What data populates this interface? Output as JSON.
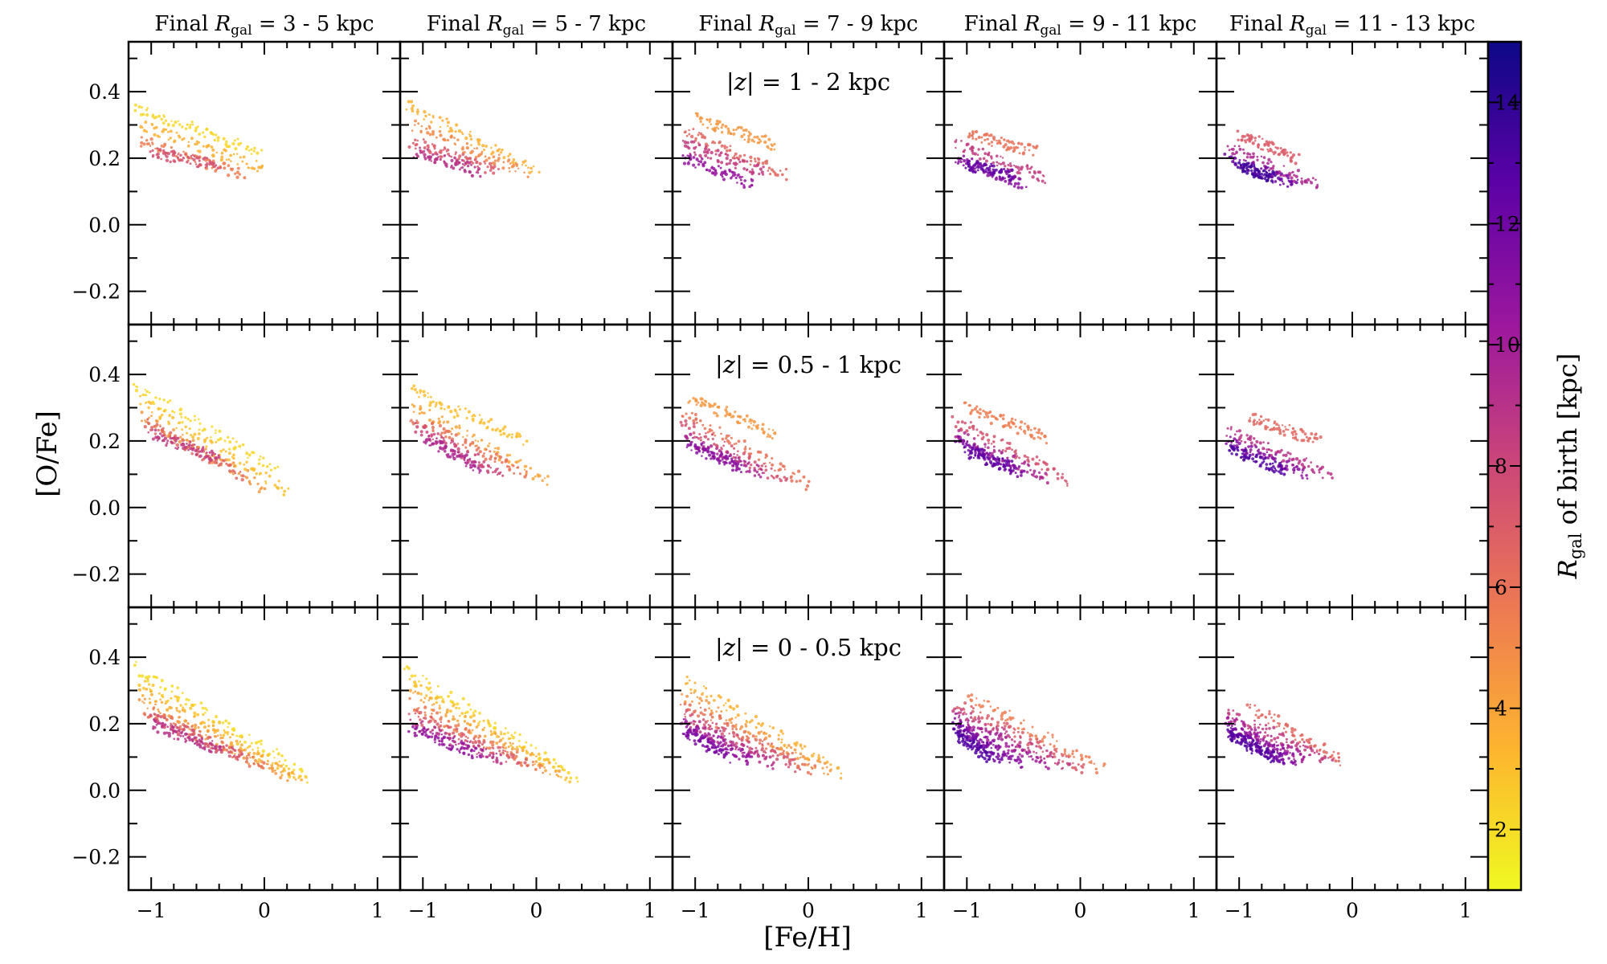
{
  "chart_data": {
    "type": "scatter",
    "column_titles": [
      {
        "prefix": "Final ",
        "var": "R",
        "sub": "gal",
        "suffix": " = 3 - 5 kpc"
      },
      {
        "prefix": "Final ",
        "var": "R",
        "sub": "gal",
        "suffix": " = 5 - 7 kpc"
      },
      {
        "prefix": "Final ",
        "var": "R",
        "sub": "gal",
        "suffix": " = 7 - 9 kpc"
      },
      {
        "prefix": "Final ",
        "var": "R",
        "sub": "gal",
        "suffix": " = 9 - 11 kpc"
      },
      {
        "prefix": "Final ",
        "var": "R",
        "sub": "gal",
        "suffix": " = 11 - 13 kpc"
      }
    ],
    "row_labels": [
      {
        "pre": "|",
        "var": "z",
        "post": "| = 1 - 2 kpc"
      },
      {
        "pre": "|",
        "var": "z",
        "post": "| = 0.5 - 1 kpc"
      },
      {
        "pre": "|",
        "var": "z",
        "post": "| = 0 - 0.5 kpc"
      }
    ],
    "xlabel": "[Fe/H]",
    "ylabel": "[O/Fe]",
    "xlim": [
      -1.2,
      1.2
    ],
    "ylim": [
      -0.3,
      0.55
    ],
    "xticks": [
      -1,
      0,
      1
    ],
    "xtick_labels": [
      "−1",
      "0",
      "1"
    ],
    "yticks": [
      -0.2,
      0.0,
      0.2,
      0.4
    ],
    "ytick_labels": [
      "−0.2",
      "0.0",
      "0.2",
      "0.4"
    ],
    "colorbar": {
      "label_var": "R",
      "label_sub": "gal",
      "label_rest": " of birth [kpc]",
      "range": [
        1,
        15
      ],
      "ticks": [
        2,
        4,
        6,
        8,
        10,
        12,
        14
      ],
      "tick_labels": [
        "2",
        "4",
        "6",
        "8",
        "10",
        "12",
        "14"
      ],
      "colormap": "plasma_r",
      "colors": [
        "#f0f921",
        "#fdb42f",
        "#ed7953",
        "#cc4778",
        "#9c179e",
        "#5c01a6",
        "#0d0887"
      ]
    },
    "panels": [
      [
        {
          "tracks": [
            [
              -1.15,
              0.35,
              -0.05,
              0.22,
              2.2
            ],
            [
              -1.1,
              0.3,
              0.0,
              0.17,
              3.5
            ],
            [
              -1.1,
              0.25,
              -0.2,
              0.15,
              5.5
            ],
            [
              -1.0,
              0.22,
              -0.4,
              0.18,
              7.5
            ]
          ]
        },
        {
          "tracks": [
            [
              -1.15,
              0.36,
              0.0,
              0.16,
              3.5
            ],
            [
              -1.1,
              0.3,
              -0.1,
              0.16,
              5.0
            ],
            [
              -1.1,
              0.25,
              -0.35,
              0.16,
              7.0
            ],
            [
              -1.05,
              0.22,
              -0.5,
              0.16,
              9.0
            ]
          ]
        },
        {
          "tracks": [
            [
              -1.0,
              0.32,
              -0.3,
              0.24,
              4.5
            ],
            [
              -1.1,
              0.28,
              -0.2,
              0.15,
              6.5
            ],
            [
              -1.1,
              0.24,
              -0.4,
              0.16,
              8.5
            ],
            [
              -1.1,
              0.2,
              -0.5,
              0.12,
              10.5
            ]
          ]
        },
        {
          "tracks": [
            [
              -1.0,
              0.27,
              -0.4,
              0.22,
              6.0
            ],
            [
              -1.1,
              0.24,
              -0.3,
              0.14,
              8.5
            ],
            [
              -1.1,
              0.2,
              -0.5,
              0.12,
              11.0
            ],
            [
              -1.0,
              0.18,
              -0.6,
              0.15,
              12.5
            ]
          ]
        },
        {
          "tracks": [
            [
              -1.0,
              0.27,
              -0.5,
              0.2,
              7.0
            ],
            [
              -1.1,
              0.23,
              -0.3,
              0.12,
              9.5
            ],
            [
              -1.1,
              0.2,
              -0.5,
              0.12,
              12.0
            ],
            [
              -1.0,
              0.18,
              -0.7,
              0.14,
              13.5
            ]
          ]
        }
      ],
      [
        {
          "tracks": [
            [
              -1.15,
              0.36,
              0.1,
              0.12,
              2.2
            ],
            [
              -1.1,
              0.32,
              0.2,
              0.05,
              3.0
            ],
            [
              -1.1,
              0.28,
              0.0,
              0.06,
              4.5
            ],
            [
              -1.05,
              0.25,
              -0.2,
              0.1,
              6.5
            ],
            [
              -1.0,
              0.22,
              -0.4,
              0.15,
              8.5
            ]
          ]
        },
        {
          "tracks": [
            [
              -1.1,
              0.35,
              -0.1,
              0.2,
              3.0
            ],
            [
              -1.1,
              0.31,
              0.1,
              0.08,
              4.0
            ],
            [
              -1.1,
              0.27,
              -0.1,
              0.1,
              6.0
            ],
            [
              -1.05,
              0.24,
              -0.3,
              0.1,
              8.0
            ],
            [
              -1.0,
              0.21,
              -0.5,
              0.12,
              9.5
            ]
          ]
        },
        {
          "tracks": [
            [
              -1.05,
              0.33,
              -0.3,
              0.22,
              4.5
            ],
            [
              -1.1,
              0.29,
              0.0,
              0.07,
              6.0
            ],
            [
              -1.1,
              0.25,
              -0.2,
              0.08,
              7.5
            ],
            [
              -1.1,
              0.21,
              -0.4,
              0.1,
              9.5
            ],
            [
              -1.05,
              0.19,
              -0.6,
              0.12,
              11.0
            ]
          ]
        },
        {
          "tracks": [
            [
              -1.0,
              0.3,
              -0.3,
              0.21,
              5.5
            ],
            [
              -1.1,
              0.26,
              -0.1,
              0.08,
              7.5
            ],
            [
              -1.1,
              0.22,
              -0.3,
              0.09,
              9.5
            ],
            [
              -1.1,
              0.2,
              -0.5,
              0.1,
              11.5
            ],
            [
              -1.0,
              0.17,
              -0.6,
              0.12,
              12.5
            ]
          ]
        },
        {
          "tracks": [
            [
              -0.9,
              0.27,
              -0.3,
              0.2,
              6.5
            ],
            [
              -1.1,
              0.23,
              -0.2,
              0.1,
              9.0
            ],
            [
              -1.1,
              0.2,
              -0.4,
              0.1,
              11.0
            ],
            [
              -1.1,
              0.18,
              -0.6,
              0.11,
              13.0
            ]
          ]
        }
      ],
      [
        {
          "tracks": [
            [
              -1.15,
              0.37,
              0.4,
              0.04,
              2.0
            ],
            [
              -1.1,
              0.33,
              0.35,
              0.03,
              2.8
            ],
            [
              -1.1,
              0.3,
              0.3,
              0.03,
              3.6
            ],
            [
              -1.1,
              0.27,
              0.2,
              0.04,
              4.5
            ],
            [
              -1.05,
              0.24,
              0.0,
              0.07,
              6.0
            ],
            [
              -1.0,
              0.22,
              -0.2,
              0.1,
              7.5
            ],
            [
              -1.0,
              0.2,
              -0.4,
              0.12,
              9.0
            ]
          ]
        },
        {
          "tracks": [
            [
              -1.15,
              0.36,
              0.35,
              0.04,
              2.2
            ],
            [
              -1.1,
              0.32,
              0.3,
              0.04,
              3.0
            ],
            [
              -1.1,
              0.29,
              0.2,
              0.05,
              4.0
            ],
            [
              -1.1,
              0.26,
              0.05,
              0.06,
              5.5
            ],
            [
              -1.1,
              0.23,
              -0.1,
              0.08,
              7.0
            ],
            [
              -1.1,
              0.2,
              -0.3,
              0.09,
              9.0
            ],
            [
              -1.1,
              0.18,
              -0.5,
              0.11,
              10.5
            ]
          ]
        },
        {
          "tracks": [
            [
              -1.1,
              0.33,
              0.3,
              0.05,
              3.5
            ],
            [
              -1.1,
              0.29,
              0.2,
              0.05,
              4.5
            ],
            [
              -1.1,
              0.26,
              0.05,
              0.06,
              6.0
            ],
            [
              -1.1,
              0.23,
              -0.1,
              0.07,
              7.5
            ],
            [
              -1.1,
              0.21,
              -0.3,
              0.08,
              9.0
            ],
            [
              -1.1,
              0.2,
              -0.5,
              0.09,
              10.5
            ],
            [
              -1.1,
              0.18,
              -0.7,
              0.1,
              11.5
            ]
          ]
        },
        {
          "tracks": [
            [
              -1.0,
              0.29,
              0.2,
              0.06,
              5.5
            ],
            [
              -1.1,
              0.26,
              0.05,
              0.06,
              7.0
            ],
            [
              -1.1,
              0.24,
              -0.1,
              0.07,
              8.5
            ],
            [
              -1.1,
              0.22,
              -0.3,
              0.08,
              10.0
            ],
            [
              -1.1,
              0.2,
              -0.5,
              0.08,
              11.0
            ],
            [
              -1.1,
              0.19,
              -0.7,
              0.09,
              12.0
            ],
            [
              -1.1,
              0.17,
              -0.8,
              0.1,
              13.0
            ]
          ]
        },
        {
          "tracks": [
            [
              -0.9,
              0.25,
              -0.1,
              0.09,
              6.5
            ],
            [
              -1.1,
              0.23,
              -0.2,
              0.09,
              8.5
            ],
            [
              -1.1,
              0.21,
              -0.4,
              0.09,
              10.0
            ],
            [
              -1.1,
              0.19,
              -0.5,
              0.09,
              11.0
            ],
            [
              -1.1,
              0.18,
              -0.6,
              0.09,
              12.0
            ],
            [
              -1.1,
              0.17,
              -0.7,
              0.1,
              13.0
            ]
          ]
        }
      ]
    ]
  }
}
